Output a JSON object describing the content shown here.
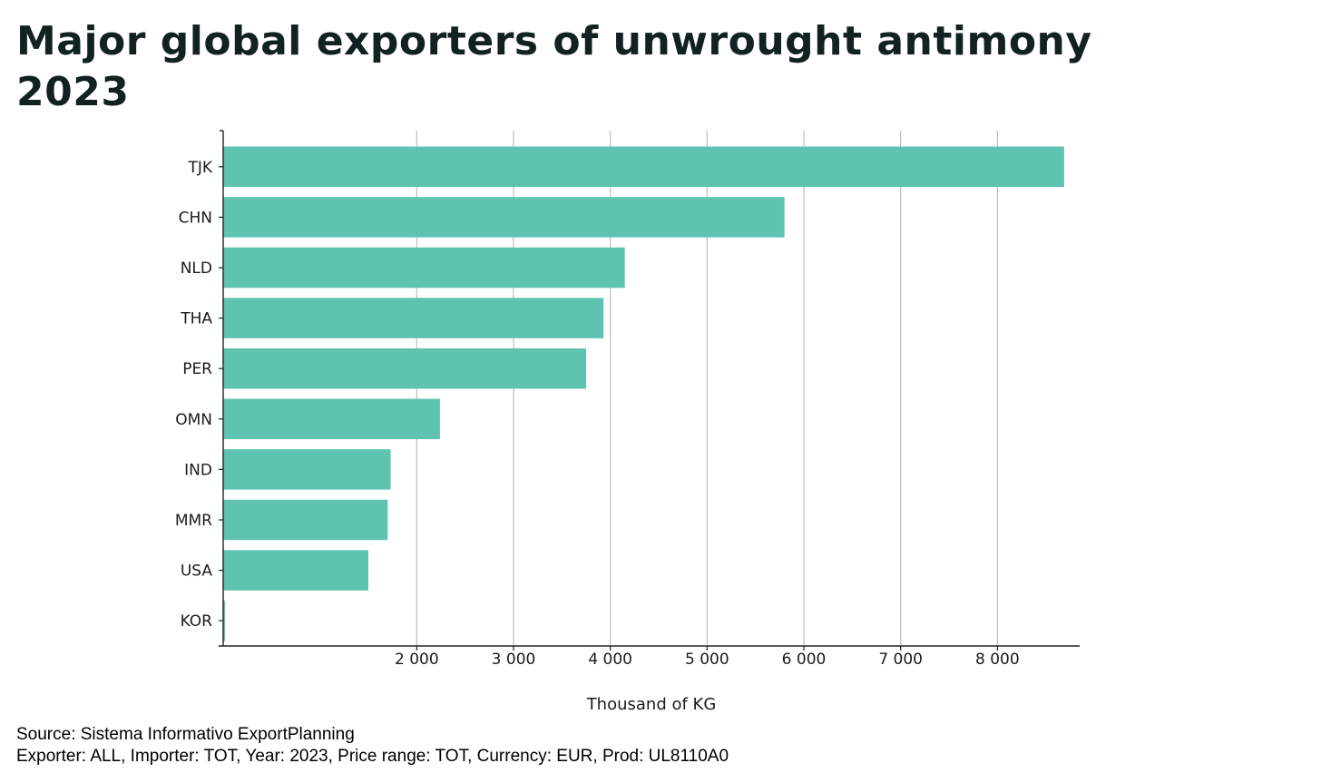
{
  "chart_data": {
    "type": "bar",
    "orientation": "horizontal",
    "title": "Major global exporters of unwrought antimony 2023",
    "title_lines": [
      "Major global exporters of unwrought antimony",
      "2023"
    ],
    "categories": [
      "TJK",
      "CHN",
      "NLD",
      "THA",
      "PER",
      "OMN",
      "IND",
      "MMR",
      "USA",
      "KOR"
    ],
    "values": [
      8690,
      5800,
      4150,
      3930,
      3750,
      2240,
      1730,
      1700,
      1500,
      20
    ],
    "xlabel": "Thousand of KG",
    "ylabel": "",
    "xlim": [
      0,
      8850
    ],
    "x_ticks": [
      2000,
      3000,
      4000,
      5000,
      6000,
      7000,
      8000
    ],
    "x_tick_labels": [
      "2 000",
      "3 000",
      "4 000",
      "5 000",
      "6 000",
      "7 000",
      "8 000"
    ],
    "grid": "vertical",
    "bar_color": "#5fc3b2",
    "grid_color": "#bdbdbd"
  },
  "footer": {
    "source": "Source: Sistema Informativo ExportPlanning",
    "details": "Exporter: ALL, Importer: TOT, Year: 2023, Price range: TOT, Currency: EUR, Prod: UL8110A0"
  }
}
